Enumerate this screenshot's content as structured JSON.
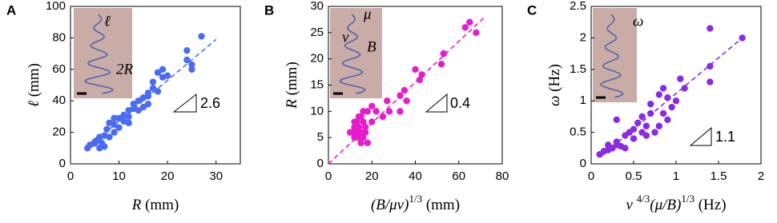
{
  "chart_data": [
    {
      "type": "scatter",
      "panel_label": "A",
      "color": "#4a6cf2",
      "xlabel": [
        "R",
        " (mm)"
      ],
      "ylabel": [
        "ℓ",
        " (mm)"
      ],
      "xlim": [
        0,
        35
      ],
      "xticks": [
        0,
        10,
        20,
        30
      ],
      "ylim": [
        0,
        100
      ],
      "yticks": [
        0,
        20,
        40,
        60,
        80,
        100
      ],
      "x": [
        3.5,
        4,
        5,
        5.5,
        6,
        6,
        6.5,
        7,
        7,
        7.5,
        8,
        8,
        9,
        9,
        10,
        10,
        11,
        11,
        12,
        12,
        13,
        13,
        14,
        14,
        15,
        16,
        16,
        17,
        17,
        18,
        18,
        19,
        19,
        24,
        24,
        25,
        25,
        27,
        16,
        15,
        5,
        6,
        9,
        12,
        20
      ],
      "values": [
        10,
        12,
        13,
        15,
        10,
        17,
        13,
        11,
        18,
        22,
        17,
        26,
        20,
        25,
        23,
        29,
        27,
        31,
        26,
        30,
        35,
        38,
        34,
        40,
        42,
        38,
        45,
        48,
        52,
        46,
        58,
        55,
        60,
        72,
        66,
        60,
        63,
        81,
        43,
        36,
        14,
        15,
        29,
        34,
        56
      ],
      "fit_x": [
        3,
        30
      ],
      "fit_y": [
        9,
        79
      ],
      "inset_labels": [
        "ℓ",
        "2R"
      ],
      "slope_label": "2.6"
    },
    {
      "type": "scatter",
      "panel_label": "B",
      "color": "#e61ccb",
      "xlabel": [
        "(B/μv)",
        "1/3",
        " (mm)"
      ],
      "ylabel": [
        "R",
        " (mm)"
      ],
      "xlim": [
        0,
        80
      ],
      "xticks": [
        0,
        20,
        40,
        60,
        80
      ],
      "ylim": [
        0,
        30
      ],
      "yticks": [
        0,
        5,
        10,
        15,
        20,
        25,
        30
      ],
      "x": [
        10,
        11,
        12,
        12,
        13,
        13,
        14,
        14,
        15,
        15,
        15,
        16,
        16,
        17,
        17,
        18,
        12,
        14,
        20,
        20,
        25,
        27,
        28,
        33,
        33,
        35,
        36,
        40,
        42,
        43,
        52,
        53,
        63,
        65,
        68,
        18,
        16,
        22,
        14
      ],
      "values": [
        6,
        6,
        7,
        5,
        6,
        8,
        5,
        7,
        4,
        6,
        9,
        8,
        5,
        7,
        6,
        4,
        8,
        6,
        8,
        11,
        9,
        12,
        10,
        13,
        10,
        14,
        12,
        18,
        16,
        17,
        19,
        21,
        26,
        27,
        25,
        10,
        10,
        10,
        9
      ],
      "fit_x": [
        0,
        72
      ],
      "fit_y": [
        0,
        28
      ],
      "inset_labels": [
        "μ",
        "v",
        "B"
      ],
      "slope_label": "0.4"
    },
    {
      "type": "scatter",
      "panel_label": "C",
      "color": "#8a2be2",
      "xlabel": [
        "v ",
        "4/3",
        "(μ/B)",
        "1/3",
        " (Hz)"
      ],
      "ylabel": [
        "ω",
        " (Hz)"
      ],
      "xlim": [
        0,
        2
      ],
      "xticks": [
        0,
        0.5,
        1,
        1.5,
        2
      ],
      "ylim": [
        0,
        2.5
      ],
      "yticks": [
        0,
        0.5,
        1,
        1.5,
        2,
        2.5
      ],
      "x": [
        0.1,
        0.15,
        0.2,
        0.2,
        0.25,
        0.3,
        0.3,
        0.35,
        0.4,
        0.4,
        0.45,
        0.5,
        0.5,
        0.55,
        0.6,
        0.6,
        0.65,
        0.7,
        0.7,
        0.75,
        0.8,
        0.8,
        0.85,
        0.9,
        0.9,
        0.95,
        1.0,
        1.05,
        1.1,
        1.4,
        1.4,
        1.4,
        1.78,
        0.3,
        0.85,
        0.65
      ],
      "values": [
        0.15,
        0.2,
        0.3,
        0.22,
        0.25,
        0.3,
        0.35,
        0.28,
        0.45,
        0.25,
        0.5,
        0.55,
        0.4,
        0.65,
        0.5,
        0.75,
        0.6,
        0.8,
        0.95,
        0.5,
        0.6,
        1.1,
        0.8,
        0.7,
        1.05,
        0.9,
        1.0,
        1.35,
        1.2,
        2.15,
        1.55,
        1.3,
        2.0,
        0.7,
        1.2,
        0.45
      ],
      "fit_x": [
        0.1,
        1.78
      ],
      "fit_y": [
        0.1,
        2.0
      ],
      "inset_labels": [
        "ω"
      ],
      "slope_label": "1.1"
    }
  ]
}
